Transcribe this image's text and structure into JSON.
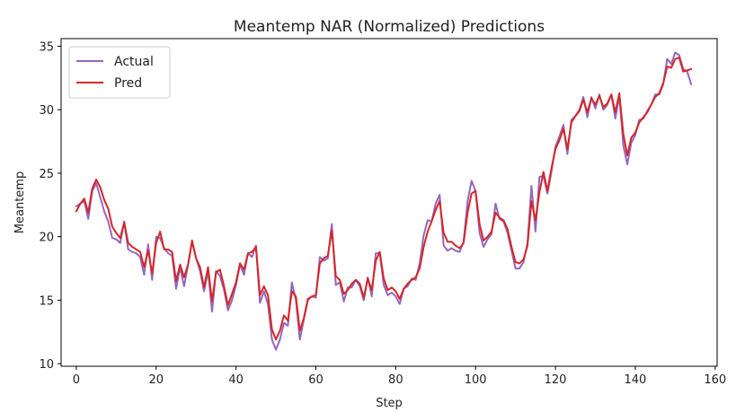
{
  "chart_data": {
    "type": "line",
    "title": "Meantemp NAR (Normalized) Predictions",
    "xlabel": "Step",
    "ylabel": "Meantemp",
    "xlim": [
      -3.8,
      160.5
    ],
    "ylim": [
      9.8,
      35.6
    ],
    "xticks": [
      0,
      20,
      40,
      60,
      80,
      100,
      120,
      140,
      160
    ],
    "yticks": [
      10,
      15,
      20,
      25,
      30,
      35
    ],
    "grid": false,
    "legend_position": "top-left",
    "series": [
      {
        "name": "Actual",
        "color": "#9467bd",
        "x_start": 0,
        "values": [
          22.4,
          22.6,
          22.8,
          21.4,
          23.6,
          24.2,
          23.1,
          22.0,
          21.2,
          19.9,
          19.8,
          19.5,
          21.2,
          19.0,
          18.8,
          18.7,
          18.4,
          17.0,
          19.4,
          16.6,
          20.0,
          19.9,
          19.1,
          18.7,
          18.5,
          15.9,
          17.6,
          16.1,
          17.8,
          19.6,
          18.3,
          17.3,
          15.7,
          17.3,
          14.1,
          17.3,
          16.9,
          15.8,
          14.2,
          15.0,
          16.2,
          17.8,
          17.0,
          18.7,
          18.4,
          19.3,
          14.8,
          15.7,
          14.7,
          11.9,
          11.1,
          11.9,
          13.2,
          13.0,
          16.4,
          15.0,
          11.9,
          13.5,
          15.0,
          15.3,
          15.2,
          18.4,
          18.1,
          18.3,
          21.0,
          16.2,
          16.4,
          14.9,
          16.0,
          16.0,
          16.6,
          16.1,
          15.0,
          16.8,
          15.3,
          18.7,
          18.7,
          16.2,
          15.4,
          15.6,
          15.3,
          14.7,
          15.9,
          16.1,
          16.7,
          16.6,
          17.9,
          20.1,
          21.3,
          21.2,
          22.6,
          23.3,
          19.3,
          18.9,
          19.1,
          18.9,
          18.8,
          19.6,
          22.8,
          24.4,
          23.6,
          20.3,
          19.2,
          19.8,
          20.2,
          22.6,
          21.4,
          21.2,
          20.3,
          18.9,
          17.5,
          17.5,
          18.0,
          19.5,
          24.0,
          20.4,
          24.7,
          24.8,
          23.4,
          25.1,
          27.1,
          27.9,
          28.8,
          26.5,
          29.2,
          29.5,
          30.0,
          31.0,
          29.4,
          31.0,
          30.1,
          31.2,
          30.0,
          30.4,
          31.2,
          29.3,
          31.1,
          27.2,
          25.7,
          27.4,
          28.0,
          29.2,
          29.3,
          29.9,
          30.4,
          31.2,
          31.2,
          32.0,
          34.0,
          33.6,
          34.5,
          34.3,
          33.2,
          33.0,
          32.0
        ]
      },
      {
        "name": "Pred",
        "color": "#d62728",
        "x_start": 0,
        "values": [
          22.0,
          22.6,
          23.0,
          21.9,
          23.8,
          24.5,
          23.9,
          22.9,
          22.2,
          20.8,
          20.3,
          19.9,
          21.1,
          19.5,
          19.2,
          19.0,
          18.8,
          17.6,
          18.9,
          17.1,
          19.5,
          20.4,
          19.0,
          19.0,
          18.8,
          16.5,
          17.8,
          16.8,
          17.8,
          19.7,
          18.3,
          17.6,
          16.0,
          17.6,
          14.9,
          17.2,
          17.4,
          16.1,
          14.6,
          15.5,
          16.4,
          17.9,
          17.4,
          18.7,
          18.8,
          19.2,
          15.4,
          16.1,
          15.4,
          12.7,
          11.9,
          12.6,
          13.8,
          13.4,
          15.7,
          15.3,
          12.6,
          13.6,
          15.1,
          15.3,
          15.4,
          17.9,
          18.3,
          18.5,
          20.5,
          16.9,
          16.6,
          15.5,
          15.8,
          16.3,
          16.6,
          16.3,
          15.2,
          16.7,
          15.8,
          18.1,
          18.8,
          16.7,
          15.8,
          16.0,
          15.7,
          15.1,
          15.9,
          16.3,
          16.6,
          16.8,
          17.5,
          19.2,
          20.4,
          21.2,
          22.1,
          22.8,
          20.3,
          19.6,
          19.6,
          19.3,
          19.1,
          19.5,
          21.9,
          23.4,
          23.6,
          21.0,
          19.7,
          20.0,
          20.4,
          21.9,
          21.5,
          21.3,
          20.6,
          19.2,
          18.0,
          17.9,
          18.2,
          19.3,
          22.8,
          21.3,
          23.5,
          25.1,
          23.6,
          25.4,
          26.9,
          27.6,
          28.5,
          26.9,
          29.0,
          29.5,
          29.9,
          30.8,
          29.8,
          30.9,
          30.4,
          31.1,
          30.2,
          30.5,
          31.2,
          29.8,
          31.3,
          28.1,
          26.4,
          27.8,
          28.2,
          29.0,
          29.4,
          29.8,
          30.4,
          31.0,
          31.3,
          32.1,
          33.4,
          33.3,
          34.0,
          34.1,
          33.0,
          33.1,
          33.2
        ]
      }
    ]
  }
}
